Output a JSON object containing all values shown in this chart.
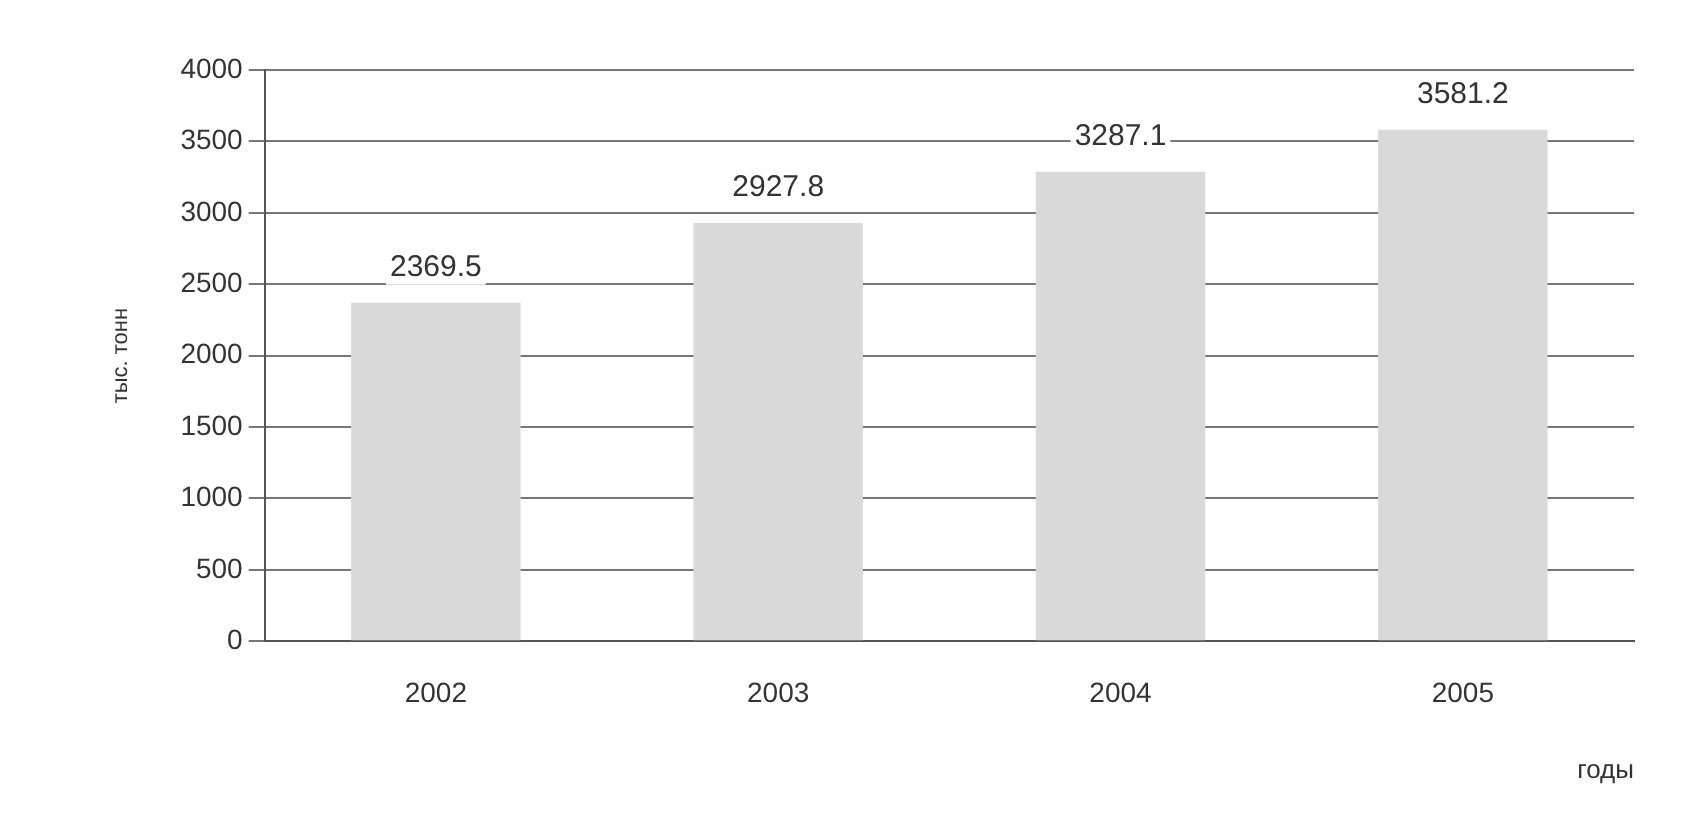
{
  "chart_data": {
    "type": "bar",
    "categories": [
      "2002",
      "2003",
      "2004",
      "2005"
    ],
    "values": [
      2369.5,
      2927.8,
      3287.1,
      3581.2
    ],
    "color": "#d9d9d9",
    "ylim": [
      0,
      4000
    ],
    "yticks": [
      0,
      500,
      1000,
      1500,
      2000,
      2500,
      3000,
      3500,
      4000
    ],
    "grid": "y",
    "data_labels": true,
    "ylabel": "тыс. тонн",
    "xlabel": "годы",
    "legend": false
  }
}
